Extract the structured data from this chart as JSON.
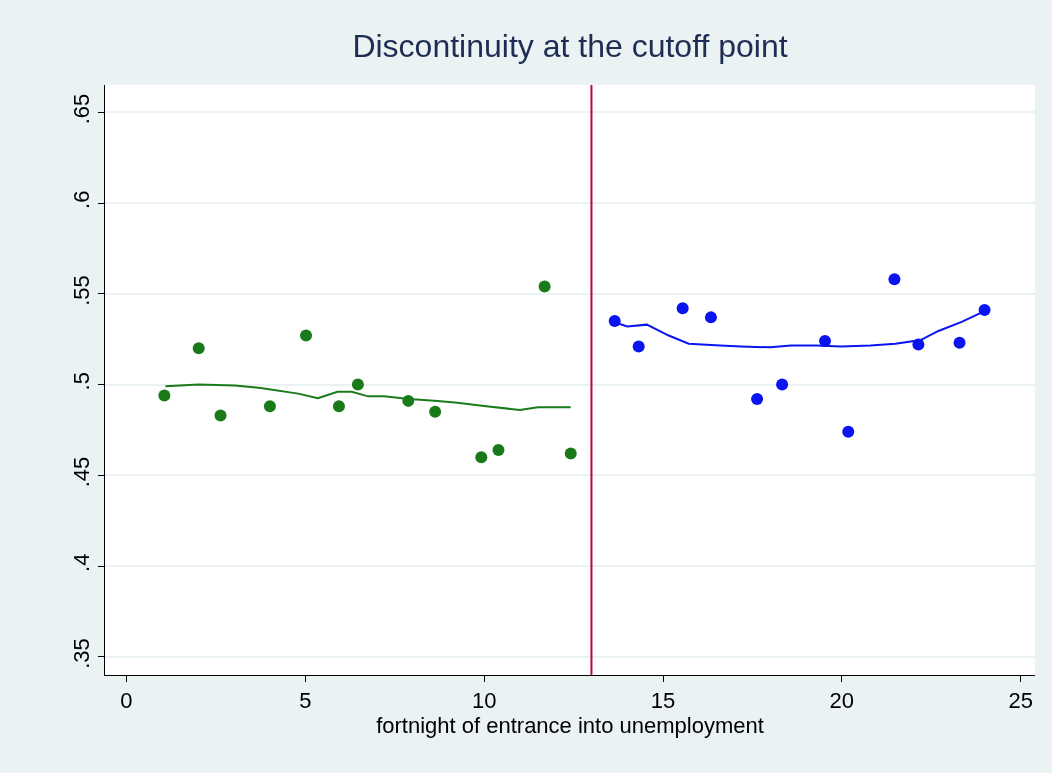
{
  "chart_data": {
    "type": "scatter",
    "title": "Discontinuity at the cutoff point",
    "xlabel": "fortnight of entrance into unemployment",
    "xlim": [
      -0.6,
      25.4
    ],
    "xticks": [
      0,
      5,
      10,
      15,
      20,
      25
    ],
    "ylim": [
      0.34,
      0.665
    ],
    "yticks": [
      {
        "value": 0.35,
        "label": ".35"
      },
      {
        "value": 0.4,
        "label": ".4"
      },
      {
        "value": 0.45,
        "label": ".45"
      },
      {
        "value": 0.5,
        "label": ".5"
      },
      {
        "value": 0.55,
        "label": ".55"
      },
      {
        "value": 0.6,
        "label": ".6"
      },
      {
        "value": 0.65,
        "label": ".65"
      }
    ],
    "grid": "y",
    "series": [
      {
        "marker": "circle",
        "color": "#1a7a1a",
        "x": [
          1.06,
          2.02,
          2.63,
          4.01,
          5.02,
          5.94,
          6.47,
          7.88,
          8.63,
          9.92,
          10.4,
          11.69,
          12.42
        ],
        "values": [
          0.494,
          0.52,
          0.483,
          0.488,
          0.527,
          0.488,
          0.5,
          0.491,
          0.485,
          0.46,
          0.464,
          0.554,
          0.462
        ]
      },
      {
        "type": "line",
        "marker": "none",
        "color": "#1a7a1a",
        "x": [
          1.09,
          2.02,
          3.03,
          3.8,
          4.8,
          5.35,
          5.9,
          6.3,
          6.75,
          7.2,
          7.9,
          8.7,
          9.25,
          10.06,
          11.0,
          11.5,
          12.42
        ],
        "values": [
          0.499,
          0.5,
          0.4995,
          0.498,
          0.495,
          0.4925,
          0.496,
          0.496,
          0.4935,
          0.4935,
          0.492,
          0.491,
          0.49,
          0.488,
          0.486,
          0.4875,
          0.4875
        ]
      },
      {
        "marker": "circle",
        "color": "#0a14f0",
        "x": [
          13.65,
          14.32,
          15.55,
          16.34,
          17.63,
          18.33,
          19.53,
          20.18,
          21.47,
          22.14,
          23.29,
          23.99
        ],
        "values": [
          0.535,
          0.521,
          0.542,
          0.537,
          0.492,
          0.5,
          0.524,
          0.474,
          0.558,
          0.522,
          0.523,
          0.541
        ]
      },
      {
        "type": "line",
        "marker": "none",
        "color": "#0a14f0",
        "x": [
          13.54,
          14.0,
          14.55,
          15.16,
          15.72,
          16.6,
          17.18,
          18.0,
          18.58,
          19.28,
          19.98,
          20.8,
          21.5,
          22.2,
          22.7,
          23.35,
          24.05
        ],
        "values": [
          0.535,
          0.532,
          0.533,
          0.527,
          0.5225,
          0.5215,
          0.521,
          0.5205,
          0.5215,
          0.5215,
          0.521,
          0.5215,
          0.5225,
          0.5245,
          0.5295,
          0.5345,
          0.541
        ]
      }
    ],
    "ref_lines": [
      {
        "axis": "x",
        "value": 13,
        "color": "#c10534"
      }
    ]
  }
}
